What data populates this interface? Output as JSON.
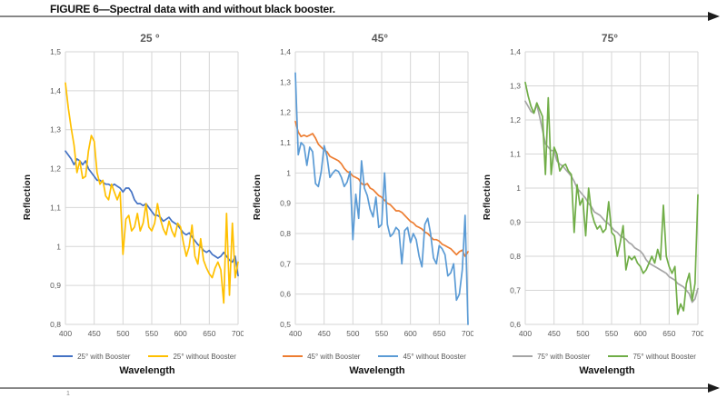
{
  "figure": {
    "title": "FIGURE 6—Spectral data with and without black booster.",
    "footnote_marker": "1"
  },
  "chart_data": [
    {
      "type": "line",
      "title": "25 °",
      "xlabel": "Wavelength",
      "ylabel": "Reflection",
      "xlim": [
        400,
        700
      ],
      "ylim": [
        0.8,
        1.5
      ],
      "grid": true,
      "legend_position": "bottom",
      "x_ticks": [
        400,
        450,
        500,
        550,
        600,
        650,
        700
      ],
      "y_ticks": [
        0.8,
        0.9,
        1.0,
        1.1,
        1.2,
        1.3,
        1.4,
        1.5
      ],
      "y_tick_labels": [
        "0,8",
        "0,9",
        "1",
        "1,1",
        "1,2",
        "1,3",
        "1,4",
        "1,5"
      ],
      "x": [
        400,
        405,
        410,
        415,
        420,
        425,
        430,
        435,
        440,
        445,
        450,
        455,
        460,
        465,
        470,
        475,
        480,
        485,
        490,
        495,
        500,
        505,
        510,
        515,
        520,
        525,
        530,
        535,
        540,
        545,
        550,
        555,
        560,
        565,
        570,
        575,
        580,
        585,
        590,
        595,
        600,
        605,
        610,
        615,
        620,
        625,
        630,
        635,
        640,
        645,
        650,
        655,
        660,
        665,
        670,
        675,
        680,
        685,
        690,
        695,
        700
      ],
      "series": [
        {
          "name": "25° with Booster",
          "color": "#4472C4",
          "values": [
            1.245,
            1.235,
            1.225,
            1.21,
            1.225,
            1.22,
            1.21,
            1.22,
            1.2,
            1.19,
            1.18,
            1.17,
            1.17,
            1.165,
            1.16,
            1.16,
            1.155,
            1.16,
            1.155,
            1.15,
            1.14,
            1.15,
            1.15,
            1.14,
            1.12,
            1.11,
            1.11,
            1.105,
            1.11,
            1.1,
            1.09,
            1.08,
            1.08,
            1.075,
            1.065,
            1.07,
            1.075,
            1.065,
            1.06,
            1.055,
            1.045,
            1.035,
            1.03,
            1.035,
            1.025,
            1.015,
            1.005,
            1.0,
            0.99,
            0.985,
            0.99,
            0.98,
            0.975,
            0.97,
            0.975,
            0.985,
            0.975,
            0.965,
            0.96,
            0.975,
            0.925
          ]
        },
        {
          "name": "25° without Booster",
          "color": "#FFC000",
          "values": [
            1.42,
            1.355,
            1.305,
            1.26,
            1.19,
            1.22,
            1.175,
            1.18,
            1.245,
            1.285,
            1.27,
            1.19,
            1.16,
            1.17,
            1.13,
            1.12,
            1.16,
            1.14,
            1.12,
            1.14,
            0.98,
            1.07,
            1.08,
            1.04,
            1.05,
            1.085,
            1.04,
            1.06,
            1.11,
            1.05,
            1.04,
            1.06,
            1.11,
            1.07,
            1.045,
            1.03,
            1.065,
            1.04,
            1.025,
            1.06,
            1.05,
            1.01,
            0.975,
            1.0,
            1.055,
            0.975,
            0.955,
            1.02,
            0.965,
            0.945,
            0.93,
            0.92,
            0.945,
            0.96,
            0.94,
            0.855,
            1.085,
            0.875,
            1.06,
            0.92,
            0.96
          ]
        }
      ]
    },
    {
      "type": "line",
      "title": "45°",
      "xlabel": "Wavelength",
      "ylabel": "Reflection",
      "xlim": [
        400,
        700
      ],
      "ylim": [
        0.5,
        1.4
      ],
      "grid": true,
      "legend_position": "bottom",
      "x_ticks": [
        400,
        450,
        500,
        550,
        600,
        650,
        700
      ],
      "y_ticks": [
        0.5,
        0.6,
        0.7,
        0.8,
        0.9,
        1.0,
        1.1,
        1.2,
        1.3,
        1.4
      ],
      "y_tick_labels": [
        "0,5",
        "0,6",
        "0,7",
        "0,8",
        "0,9",
        "1",
        "1,1",
        "1,2",
        "1,3",
        "1,4"
      ],
      "x": [
        400,
        405,
        410,
        415,
        420,
        425,
        430,
        435,
        440,
        445,
        450,
        455,
        460,
        465,
        470,
        475,
        480,
        485,
        490,
        495,
        500,
        505,
        510,
        515,
        520,
        525,
        530,
        535,
        540,
        545,
        550,
        555,
        560,
        565,
        570,
        575,
        580,
        585,
        590,
        595,
        600,
        605,
        610,
        615,
        620,
        625,
        630,
        635,
        640,
        645,
        650,
        655,
        660,
        665,
        670,
        675,
        680,
        685,
        690,
        695,
        700
      ],
      "series": [
        {
          "name": "45° with Booster",
          "color": "#ED7D31",
          "values": [
            1.17,
            1.135,
            1.12,
            1.125,
            1.12,
            1.125,
            1.13,
            1.115,
            1.095,
            1.085,
            1.075,
            1.07,
            1.055,
            1.05,
            1.045,
            1.04,
            1.03,
            1.015,
            1.005,
            1.0,
            0.99,
            0.985,
            0.98,
            0.965,
            0.96,
            0.965,
            0.95,
            0.945,
            0.935,
            0.925,
            0.92,
            0.91,
            0.9,
            0.895,
            0.885,
            0.875,
            0.875,
            0.87,
            0.86,
            0.85,
            0.84,
            0.835,
            0.825,
            0.82,
            0.815,
            0.805,
            0.8,
            0.79,
            0.78,
            0.78,
            0.775,
            0.765,
            0.76,
            0.755,
            0.75,
            0.74,
            0.73,
            0.74,
            0.745,
            0.725,
            0.74
          ]
        },
        {
          "name": "45° without Booster",
          "color": "#5B9BD5",
          "values": [
            1.33,
            1.06,
            1.1,
            1.09,
            1.025,
            1.085,
            1.07,
            0.965,
            0.955,
            1.005,
            1.09,
            1.055,
            0.985,
            1.0,
            1.01,
            1.005,
            0.985,
            0.955,
            0.97,
            1.005,
            0.78,
            0.93,
            0.85,
            1.04,
            0.95,
            0.925,
            0.88,
            0.855,
            0.92,
            0.82,
            0.83,
            1.0,
            0.83,
            0.79,
            0.8,
            0.82,
            0.81,
            0.7,
            0.81,
            0.82,
            0.77,
            0.8,
            0.78,
            0.725,
            0.69,
            0.83,
            0.85,
            0.8,
            0.72,
            0.7,
            0.76,
            0.75,
            0.73,
            0.66,
            0.67,
            0.7,
            0.58,
            0.6,
            0.68,
            0.86,
            0.5
          ]
        }
      ]
    },
    {
      "type": "line",
      "title": "75°",
      "xlabel": "Wavelength",
      "ylabel": "Reflection",
      "xlim": [
        400,
        700
      ],
      "ylim": [
        0.6,
        1.4
      ],
      "grid": true,
      "legend_position": "bottom",
      "x_ticks": [
        400,
        450,
        500,
        550,
        600,
        650,
        700
      ],
      "y_ticks": [
        0.6,
        0.7,
        0.8,
        0.9,
        1.0,
        1.1,
        1.2,
        1.3,
        1.4
      ],
      "y_tick_labels": [
        "0,6",
        "0,7",
        "0,8",
        "0,9",
        "1",
        "1,1",
        "1,2",
        "1,3",
        "1,4"
      ],
      "x": [
        400,
        405,
        410,
        415,
        420,
        425,
        430,
        435,
        440,
        445,
        450,
        455,
        460,
        465,
        470,
        475,
        480,
        485,
        490,
        495,
        500,
        505,
        510,
        515,
        520,
        525,
        530,
        535,
        540,
        545,
        550,
        555,
        560,
        565,
        570,
        575,
        580,
        585,
        590,
        595,
        600,
        605,
        610,
        615,
        620,
        625,
        630,
        635,
        640,
        645,
        650,
        655,
        660,
        665,
        670,
        675,
        680,
        685,
        690,
        695,
        700
      ],
      "series": [
        {
          "name": "75° with Booster",
          "color": "#A5A5A5",
          "values": [
            1.255,
            1.24,
            1.225,
            1.22,
            1.245,
            1.21,
            1.17,
            1.13,
            1.12,
            1.11,
            1.11,
            1.08,
            1.07,
            1.065,
            1.055,
            1.045,
            1.035,
            1.02,
            1.0,
            0.99,
            0.98,
            0.97,
            0.955,
            0.945,
            0.93,
            0.925,
            0.92,
            0.91,
            0.9,
            0.895,
            0.885,
            0.875,
            0.87,
            0.86,
            0.855,
            0.85,
            0.84,
            0.835,
            0.825,
            0.82,
            0.815,
            0.805,
            0.79,
            0.78,
            0.775,
            0.77,
            0.765,
            0.76,
            0.755,
            0.75,
            0.74,
            0.735,
            0.73,
            0.72,
            0.715,
            0.71,
            0.7,
            0.69,
            0.665,
            0.675,
            0.705
          ]
        },
        {
          "name": "75° without Booster",
          "color": "#70AD47",
          "values": [
            1.31,
            1.27,
            1.24,
            1.22,
            1.25,
            1.23,
            1.21,
            1.04,
            1.265,
            1.04,
            1.12,
            1.1,
            1.05,
            1.065,
            1.07,
            1.05,
            1.04,
            0.87,
            1.01,
            0.95,
            0.97,
            0.86,
            1.0,
            0.93,
            0.9,
            0.88,
            0.89,
            0.87,
            0.88,
            0.96,
            0.87,
            0.86,
            0.8,
            0.84,
            0.89,
            0.76,
            0.8,
            0.79,
            0.8,
            0.78,
            0.77,
            0.75,
            0.76,
            0.78,
            0.8,
            0.78,
            0.82,
            0.79,
            0.95,
            0.8,
            0.77,
            0.75,
            0.77,
            0.63,
            0.66,
            0.64,
            0.72,
            0.75,
            0.67,
            0.72,
            0.98
          ]
        }
      ]
    }
  ]
}
